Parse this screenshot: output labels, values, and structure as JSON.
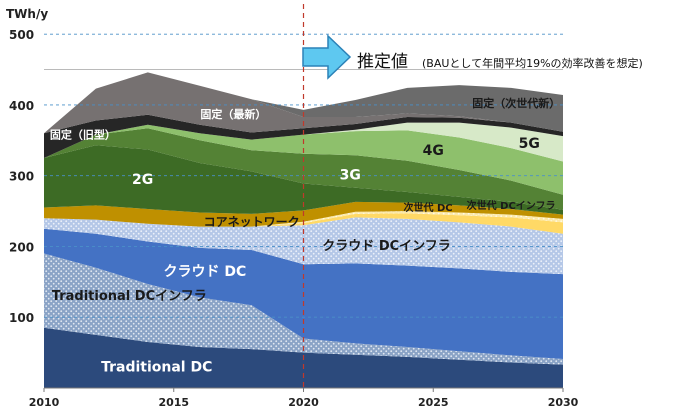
{
  "chart_data": {
    "type": "area",
    "ylabel": "TWh/y",
    "x": [
      2010,
      2012,
      2014,
      2016,
      2018,
      2020,
      2022,
      2024,
      2026,
      2028,
      2030
    ],
    "xticks": [
      "2010",
      "2015",
      "2020",
      "2025",
      "2030"
    ],
    "yticks": [
      "100",
      "200",
      "300",
      "400",
      "500"
    ],
    "xlim": [
      2010,
      2030
    ],
    "ylim": [
      0,
      520
    ],
    "grid": "dashed-horizontal",
    "forecast_boundary": 2020,
    "forecast_text_main": "推定値",
    "forecast_text_sub": "(BAUとして年間平均19%の効率改善を想定)",
    "series": [
      {
        "name": "Traditional DC",
        "color": "#2c4a7c",
        "values": [
          85,
          75,
          65,
          58,
          55,
          50,
          47,
          44,
          40,
          36,
          33
        ]
      },
      {
        "name": "Traditional DCインフラ",
        "color": "#8aa3c6",
        "values": [
          105,
          95,
          82,
          70,
          62,
          20,
          16,
          14,
          12,
          10,
          8
        ]
      },
      {
        "name": "クラウド DC",
        "color": "#4472c4",
        "values": [
          35,
          48,
          60,
          70,
          78,
          105,
          113,
          115,
          117,
          118,
          120
        ]
      },
      {
        "name": "クラウド DCインフラ",
        "color": "#b4c7e7",
        "values": [
          15,
          20,
          25,
          30,
          33,
          55,
          65,
          66,
          65,
          64,
          57
        ]
      },
      {
        "name": "次世代 DC",
        "color": "#ffd966",
        "values": [
          0,
          0,
          0,
          0,
          0,
          3,
          5,
          8,
          10,
          13,
          16
        ]
      },
      {
        "name": "次世代 DCインフラ",
        "color": "#fce9a8",
        "values": [
          0,
          0,
          0,
          0,
          0,
          2,
          3,
          3,
          4,
          4,
          5
        ]
      },
      {
        "name": "コアネットワーク",
        "color": "#bf9000",
        "values": [
          15,
          20,
          21,
          20,
          18,
          16,
          14,
          12,
          10,
          8,
          6
        ]
      },
      {
        "name": "2G",
        "color": "#3d6b25",
        "values": [
          70,
          85,
          84,
          70,
          60,
          38,
          20,
          15,
          12,
          10,
          7
        ]
      },
      {
        "name": "3G",
        "color": "#548235",
        "values": [
          0,
          15,
          30,
          32,
          30,
          42,
          46,
          44,
          38,
          30,
          21
        ]
      },
      {
        "name": "4G",
        "color": "#8ec06c",
        "values": [
          0,
          0,
          5,
          10,
          15,
          27,
          34,
          43,
          46,
          46,
          47
        ]
      },
      {
        "name": "5G",
        "color": "#d7e9c8",
        "values": [
          0,
          0,
          0,
          0,
          0,
          0,
          2,
          11,
          21,
          29,
          36
        ]
      },
      {
        "name": "固定（旧型）",
        "color": "#262626",
        "values": [
          35,
          20,
          14,
          12,
          10,
          9,
          8,
          8,
          7,
          7,
          6
        ]
      },
      {
        "name": "固定（最新）",
        "color": "#767171",
        "values": [
          0,
          45,
          60,
          55,
          47,
          16,
          10,
          5,
          2,
          0,
          0
        ]
      },
      {
        "name": "固定（次世代新）",
        "color": "#6b6b6b",
        "values": [
          0,
          0,
          0,
          0,
          0,
          10,
          24,
          36,
          44,
          49,
          52
        ]
      }
    ],
    "annotations": [
      {
        "text": "Traditional DC",
        "series": "Traditional DC"
      },
      {
        "text": "Traditional DCインフラ",
        "series": "Traditional DCインフラ"
      },
      {
        "text": "クラウド DC",
        "series": "クラウド DC"
      },
      {
        "text": "クラウド DCインフラ",
        "series": "クラウド DCインフラ"
      },
      {
        "text": "次世代 DC",
        "series": "次世代 DC"
      },
      {
        "text": "次世代 DCインフラ",
        "series": "次世代 DCインフラ"
      },
      {
        "text": "コアネットワーク",
        "series": "コアネットワーク"
      },
      {
        "text": "2G",
        "series": "2G"
      },
      {
        "text": "3G",
        "series": "3G"
      },
      {
        "text": "4G",
        "series": "4G"
      },
      {
        "text": "5G",
        "series": "5G"
      },
      {
        "text": "固定（旧型）",
        "series": "固定（旧型）"
      },
      {
        "text": "固定（最新）",
        "series": "固定（最新）"
      },
      {
        "text": "固定（次世代新）",
        "series": "固定（次世代新）"
      }
    ]
  }
}
